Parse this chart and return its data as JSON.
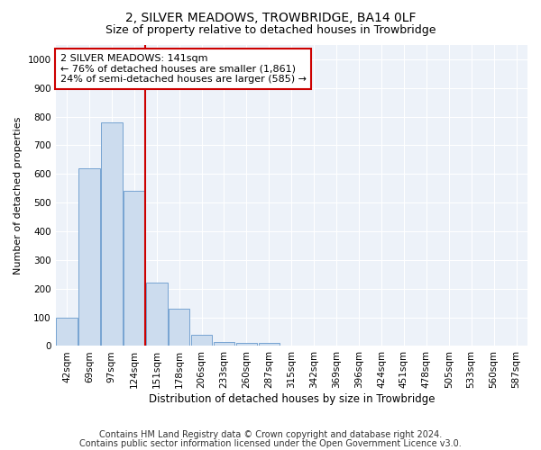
{
  "title": "2, SILVER MEADOWS, TROWBRIDGE, BA14 0LF",
  "subtitle": "Size of property relative to detached houses in Trowbridge",
  "xlabel": "Distribution of detached houses by size in Trowbridge",
  "ylabel": "Number of detached properties",
  "categories": [
    "42sqm",
    "69sqm",
    "97sqm",
    "124sqm",
    "151sqm",
    "178sqm",
    "206sqm",
    "233sqm",
    "260sqm",
    "287sqm",
    "315sqm",
    "342sqm",
    "369sqm",
    "396sqm",
    "424sqm",
    "451sqm",
    "478sqm",
    "505sqm",
    "533sqm",
    "560sqm",
    "587sqm"
  ],
  "values": [
    100,
    620,
    780,
    540,
    220,
    130,
    40,
    15,
    10,
    10,
    0,
    0,
    0,
    0,
    0,
    0,
    0,
    0,
    0,
    0,
    0
  ],
  "bar_color": "#ccdcee",
  "bar_edge_color": "#6699cc",
  "vline_color": "#cc0000",
  "vline_index": 3.5,
  "annotation_text": "2 SILVER MEADOWS: 141sqm\n← 76% of detached houses are smaller (1,861)\n24% of semi-detached houses are larger (585) →",
  "annotation_box_color": "#cc0000",
  "ylim": [
    0,
    1050
  ],
  "yticks": [
    0,
    100,
    200,
    300,
    400,
    500,
    600,
    700,
    800,
    900,
    1000
  ],
  "footnote_line1": "Contains HM Land Registry data © Crown copyright and database right 2024.",
  "footnote_line2": "Contains public sector information licensed under the Open Government Licence v3.0.",
  "title_fontsize": 10,
  "subtitle_fontsize": 9,
  "xlabel_fontsize": 8.5,
  "ylabel_fontsize": 8,
  "tick_fontsize": 7.5,
  "annotation_fontsize": 8,
  "footnote_fontsize": 7,
  "background_color": "#ffffff",
  "axes_bg_color": "#edf2f9",
  "grid_color": "#ffffff"
}
